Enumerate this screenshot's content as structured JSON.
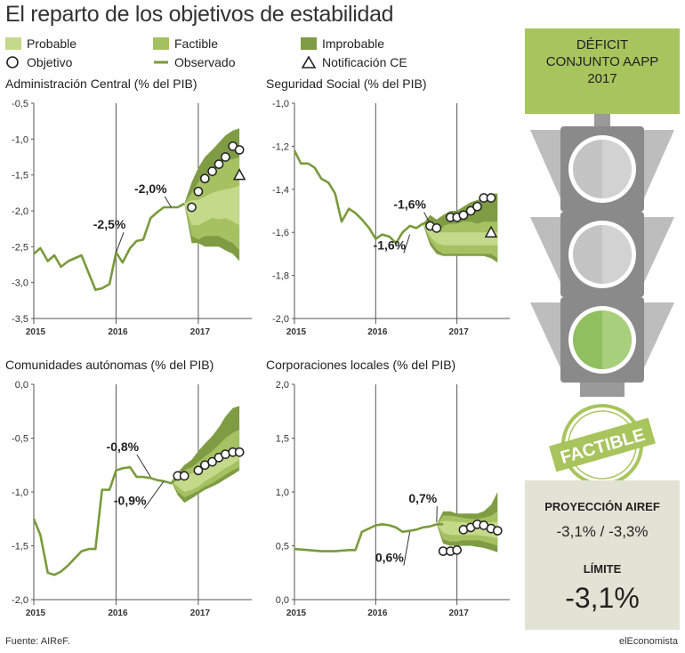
{
  "page": {
    "title": "El reparto de los objetivos de estabilidad",
    "source": "Fuente: AIReF.",
    "brand": "elEconomista"
  },
  "legend": {
    "probable": "Probable",
    "factible": "Factible",
    "improbable": "Improbable",
    "objetivo": "Objetivo",
    "observado": "Observado",
    "notificacion": "Notificación CE"
  },
  "colors": {
    "probable": "#c5d98b",
    "factible": "#a5c162",
    "improbable": "#7f9c44",
    "line": "#7a9a3c",
    "traffic_body": "#8a8a8a",
    "traffic_light_off": "#c4c4c4",
    "traffic_light_on": "#9ccb6c"
  },
  "sidebar": {
    "deficit_title": [
      "DÉFICIT",
      "CONJUNTO AAPP",
      "2017"
    ],
    "stamp": "FACTIBLE",
    "proyeccion_label": "PROYECCIÓN AIREF",
    "proyeccion_value": "-3,1% / -3,3%",
    "limite_label": "LÍMITE",
    "limite_value": "-3,1%"
  },
  "chart_data": [
    {
      "type": "line",
      "title": "Administración Central (% del PIB)",
      "ylim": [
        -3.5,
        -0.5
      ],
      "yticks": [
        -3.5,
        -3.0,
        -2.5,
        -2.0,
        -1.5,
        -1.0,
        -0.5
      ],
      "ytick_labels": [
        "-3,5",
        "-3,0",
        "-2,5",
        "-2,0",
        "-1,5",
        "-1,0",
        "-0,5"
      ],
      "xlim": [
        2015,
        2017.65
      ],
      "xticks": [
        2015,
        2016,
        2017
      ],
      "xtick_labels": [
        "2015",
        "2016",
        "2017"
      ],
      "observed": {
        "x": [
          2015.0,
          2015.08,
          2015.17,
          2015.25,
          2015.33,
          2015.42,
          2015.58,
          2015.75,
          2015.83,
          2015.92,
          2016.0,
          2016.08,
          2016.17,
          2016.25,
          2016.33,
          2016.42,
          2016.5,
          2016.58,
          2016.67,
          2016.75,
          2016.83
        ],
        "y": [
          -2.6,
          -2.52,
          -2.7,
          -2.62,
          -2.78,
          -2.7,
          -2.62,
          -3.1,
          -3.08,
          -3.02,
          -2.58,
          -2.72,
          -2.52,
          -2.42,
          -2.4,
          -2.1,
          -2.02,
          -1.95,
          -1.95,
          -1.95,
          -1.9
        ]
      },
      "fan": {
        "x": [
          2016.83,
          2016.92,
          2017.0,
          2017.08,
          2017.17,
          2017.25,
          2017.33,
          2017.42,
          2017.5
        ],
        "improbable_hi": [
          -1.9,
          -1.6,
          -1.4,
          -1.25,
          -1.15,
          -1.05,
          -0.95,
          -0.88,
          -0.85
        ],
        "factible_hi": [
          -1.9,
          -1.75,
          -1.6,
          -1.5,
          -1.42,
          -1.35,
          -1.3,
          -1.28,
          -1.25
        ],
        "probable_hi": [
          -1.9,
          -1.85,
          -1.85,
          -1.8,
          -1.75,
          -1.72,
          -1.7,
          -1.68,
          -1.65
        ],
        "probable_lo": [
          -1.9,
          -2.2,
          -2.2,
          -2.15,
          -2.1,
          -2.12,
          -2.1,
          -2.15,
          -2.2
        ],
        "factible_lo": [
          -1.9,
          -2.35,
          -2.4,
          -2.35,
          -2.35,
          -2.35,
          -2.4,
          -2.45,
          -2.55
        ],
        "improbable_lo": [
          -1.9,
          -2.45,
          -2.45,
          -2.5,
          -2.5,
          -2.5,
          -2.55,
          -2.6,
          -2.7
        ]
      },
      "objetivos": {
        "x": [
          2016.92,
          2017.0,
          2017.08,
          2017.17,
          2017.25,
          2017.33,
          2017.42,
          2017.5
        ],
        "y": [
          -1.95,
          -1.73,
          -1.55,
          -1.45,
          -1.35,
          -1.25,
          -1.1,
          -1.15
        ]
      },
      "notificacion": {
        "x": 2017.5,
        "y": -1.5
      },
      "annotations": [
        {
          "text": "-2,5%",
          "x": 2015.92,
          "y": -2.25,
          "lx": 2016.0,
          "ly": -2.58
        },
        {
          "text": "-2,0%",
          "x": 2016.42,
          "y": -1.75,
          "lx": 2016.67,
          "ly": -1.95
        }
      ]
    },
    {
      "type": "line",
      "title": "Seguridad Social (% del PIB)",
      "ylim": [
        -2.0,
        -1.0
      ],
      "yticks": [
        -2.0,
        -1.8,
        -1.6,
        -1.4,
        -1.2,
        -1.0
      ],
      "ytick_labels": [
        "-2,0",
        "-1,8",
        "-1,6",
        "-1,4",
        "-1,2",
        "-1,0"
      ],
      "xlim": [
        2015,
        2017.65
      ],
      "xticks": [
        2015,
        2016,
        2017
      ],
      "xtick_labels": [
        "2015",
        "2016",
        "2017"
      ],
      "observed": {
        "x": [
          2015.0,
          2015.08,
          2015.17,
          2015.25,
          2015.33,
          2015.42,
          2015.5,
          2015.58,
          2015.67,
          2015.75,
          2015.83,
          2015.92,
          2016.0,
          2016.08,
          2016.17,
          2016.25,
          2016.33,
          2016.42,
          2016.5,
          2016.58,
          2016.67,
          2016.75,
          2016.83
        ],
        "y": [
          -1.22,
          -1.28,
          -1.28,
          -1.3,
          -1.35,
          -1.37,
          -1.42,
          -1.55,
          -1.49,
          -1.51,
          -1.54,
          -1.58,
          -1.63,
          -1.61,
          -1.62,
          -1.65,
          -1.6,
          -1.57,
          -1.58,
          -1.56,
          -1.55,
          -1.58,
          -1.57
        ]
      },
      "fan": {
        "x": [
          2016.58,
          2016.67,
          2016.75,
          2016.83,
          2016.92,
          2017.0,
          2017.08,
          2017.17,
          2017.25,
          2017.33,
          2017.42,
          2017.5
        ],
        "improbable_hi": [
          -1.56,
          -1.52,
          -1.54,
          -1.52,
          -1.5,
          -1.5,
          -1.48,
          -1.46,
          -1.45,
          -1.44,
          -1.42,
          -1.42
        ],
        "factible_hi": [
          -1.56,
          -1.55,
          -1.56,
          -1.57,
          -1.56,
          -1.56,
          -1.55,
          -1.55,
          -1.56,
          -1.55,
          -1.55,
          -1.55
        ],
        "probable_hi": [
          -1.56,
          -1.58,
          -1.6,
          -1.6,
          -1.6,
          -1.6,
          -1.6,
          -1.6,
          -1.6,
          -1.6,
          -1.6,
          -1.6
        ],
        "probable_lo": [
          -1.56,
          -1.62,
          -1.65,
          -1.66,
          -1.66,
          -1.66,
          -1.66,
          -1.66,
          -1.66,
          -1.66,
          -1.66,
          -1.66
        ],
        "factible_lo": [
          -1.56,
          -1.64,
          -1.68,
          -1.7,
          -1.7,
          -1.7,
          -1.7,
          -1.7,
          -1.7,
          -1.7,
          -1.7,
          -1.72
        ],
        "improbable_lo": [
          -1.56,
          -1.66,
          -1.7,
          -1.71,
          -1.71,
          -1.71,
          -1.71,
          -1.71,
          -1.71,
          -1.71,
          -1.72,
          -1.74
        ]
      },
      "objetivos": {
        "x": [
          2016.67,
          2016.75,
          2016.92,
          2017.0,
          2017.08,
          2017.17,
          2017.25,
          2017.33,
          2017.42
        ],
        "y": [
          -1.57,
          -1.58,
          -1.53,
          -1.53,
          -1.52,
          -1.5,
          -1.48,
          -1.44,
          -1.44
        ]
      },
      "notificacion": {
        "x": 2017.42,
        "y": -1.6
      },
      "annotations": [
        {
          "text": "-1,6%",
          "x": 2016.42,
          "y": -1.49,
          "lx": 2016.67,
          "ly": -1.56
        },
        {
          "text": "-1,6%",
          "x": 2016.17,
          "y": -1.68,
          "lx": 2016.42,
          "ly": -1.61
        }
      ]
    },
    {
      "type": "line",
      "title": "Comunidades autónomas (% del PIB)",
      "ylim": [
        -2.0,
        0.0
      ],
      "yticks": [
        -2.0,
        -1.5,
        -1.0,
        -0.5,
        0.0
      ],
      "ytick_labels": [
        "-2,0",
        "-1,5",
        "-1,0",
        "-0,5",
        "0,0"
      ],
      "xlim": [
        2015,
        2017.65
      ],
      "xticks": [
        2015,
        2016,
        2017
      ],
      "xtick_labels": [
        "2015",
        "2016",
        "2017"
      ],
      "observed": {
        "x": [
          2015.0,
          2015.08,
          2015.17,
          2015.25,
          2015.33,
          2015.42,
          2015.58,
          2015.67,
          2015.75,
          2015.83,
          2015.92,
          2016.0,
          2016.08,
          2016.17,
          2016.25,
          2016.33,
          2016.42,
          2016.5,
          2016.58,
          2016.67,
          2016.75,
          2016.83
        ],
        "y": [
          -1.25,
          -1.4,
          -1.75,
          -1.77,
          -1.74,
          -1.68,
          -1.55,
          -1.53,
          -1.53,
          -0.98,
          -0.98,
          -0.8,
          -0.78,
          -0.77,
          -0.86,
          -0.86,
          -0.87,
          -0.89,
          -0.9,
          -0.92,
          -0.87,
          -0.84
        ]
      },
      "fan": {
        "x": [
          2016.67,
          2016.75,
          2016.83,
          2016.92,
          2017.0,
          2017.08,
          2017.17,
          2017.25,
          2017.33,
          2017.42,
          2017.5
        ],
        "improbable_hi": [
          -0.9,
          -0.82,
          -0.75,
          -0.7,
          -0.62,
          -0.55,
          -0.48,
          -0.4,
          -0.3,
          -0.22,
          -0.2
        ],
        "factible_hi": [
          -0.9,
          -0.85,
          -0.8,
          -0.77,
          -0.72,
          -0.67,
          -0.62,
          -0.56,
          -0.5,
          -0.45,
          -0.42
        ],
        "probable_hi": [
          -0.9,
          -0.88,
          -0.85,
          -0.83,
          -0.8,
          -0.77,
          -0.74,
          -0.7,
          -0.66,
          -0.62,
          -0.6
        ],
        "probable_lo": [
          -0.9,
          -0.95,
          -1.0,
          -0.98,
          -0.95,
          -0.9,
          -0.86,
          -0.82,
          -0.78,
          -0.74,
          -0.7
        ],
        "factible_lo": [
          -0.9,
          -1.0,
          -1.05,
          -1.02,
          -0.99,
          -0.95,
          -0.92,
          -0.88,
          -0.84,
          -0.8,
          -0.77
        ],
        "improbable_lo": [
          -0.9,
          -1.03,
          -1.1,
          -1.06,
          -1.02,
          -0.98,
          -0.95,
          -0.92,
          -0.88,
          -0.84,
          -0.8
        ]
      },
      "objetivos": {
        "x": [
          2016.75,
          2016.83,
          2017.0,
          2017.08,
          2017.17,
          2017.25,
          2017.33,
          2017.42,
          2017.5
        ],
        "y": [
          -0.85,
          -0.85,
          -0.8,
          -0.75,
          -0.72,
          -0.68,
          -0.65,
          -0.63,
          -0.63
        ]
      },
      "annotations": [
        {
          "text": "-0,8%",
          "x": 2016.08,
          "y": -0.62,
          "lx": 2016.42,
          "ly": -0.86
        },
        {
          "text": "-0,9%",
          "x": 2016.17,
          "y": -1.12,
          "lx": 2016.58,
          "ly": -0.9
        }
      ]
    },
    {
      "type": "line",
      "title": "Corporaciones locales (% del PIB)",
      "ylim": [
        0.0,
        2.0
      ],
      "yticks": [
        0.0,
        0.5,
        1.0,
        1.5,
        2.0
      ],
      "ytick_labels": [
        "0,0",
        "0,5",
        "1,0",
        "1,5",
        "2,0"
      ],
      "xlim": [
        2015,
        2017.65
      ],
      "xticks": [
        2015,
        2016,
        2017
      ],
      "xtick_labels": [
        "2015",
        "2016",
        "2017"
      ],
      "observed": {
        "x": [
          2015.0,
          2015.17,
          2015.33,
          2015.5,
          2015.67,
          2015.75,
          2015.83,
          2016.0,
          2016.08,
          2016.17,
          2016.25,
          2016.33,
          2016.42,
          2016.5,
          2016.58,
          2016.67,
          2016.75,
          2016.83
        ],
        "y": [
          0.47,
          0.46,
          0.45,
          0.45,
          0.46,
          0.46,
          0.63,
          0.69,
          0.7,
          0.69,
          0.67,
          0.63,
          0.64,
          0.65,
          0.67,
          0.68,
          0.7,
          0.7
        ]
      },
      "fan": {
        "x": [
          2016.75,
          2016.83,
          2016.92,
          2017.0,
          2017.08,
          2017.17,
          2017.25,
          2017.33,
          2017.42,
          2017.5
        ],
        "improbable_hi": [
          0.7,
          0.82,
          0.82,
          0.8,
          0.8,
          0.8,
          0.8,
          0.82,
          0.88,
          1.0
        ],
        "factible_hi": [
          0.7,
          0.78,
          0.78,
          0.77,
          0.76,
          0.75,
          0.75,
          0.76,
          0.78,
          0.82
        ],
        "probable_hi": [
          0.7,
          0.73,
          0.73,
          0.72,
          0.72,
          0.71,
          0.71,
          0.71,
          0.72,
          0.72
        ],
        "probable_lo": [
          0.7,
          0.62,
          0.6,
          0.6,
          0.6,
          0.6,
          0.6,
          0.59,
          0.58,
          0.57
        ],
        "factible_lo": [
          0.7,
          0.56,
          0.54,
          0.54,
          0.55,
          0.55,
          0.55,
          0.54,
          0.52,
          0.5
        ],
        "improbable_lo": [
          0.7,
          0.52,
          0.5,
          0.5,
          0.5,
          0.5,
          0.49,
          0.48,
          0.46,
          0.44
        ]
      },
      "objetivos": {
        "x": [
          2016.83,
          2016.92,
          2017.0,
          2017.08,
          2017.17,
          2017.25,
          2017.33,
          2017.42,
          2017.5
        ],
        "y": [
          0.45,
          0.45,
          0.46,
          0.65,
          0.67,
          0.7,
          0.69,
          0.66,
          0.64
        ]
      },
      "annotations": [
        {
          "text": "0,7%",
          "x": 2016.58,
          "y": 0.9,
          "lx": 2016.75,
          "ly": 0.72
        },
        {
          "text": "0,6%",
          "x": 2016.17,
          "y": 0.35,
          "lx": 2016.42,
          "ly": 0.63
        }
      ]
    }
  ]
}
